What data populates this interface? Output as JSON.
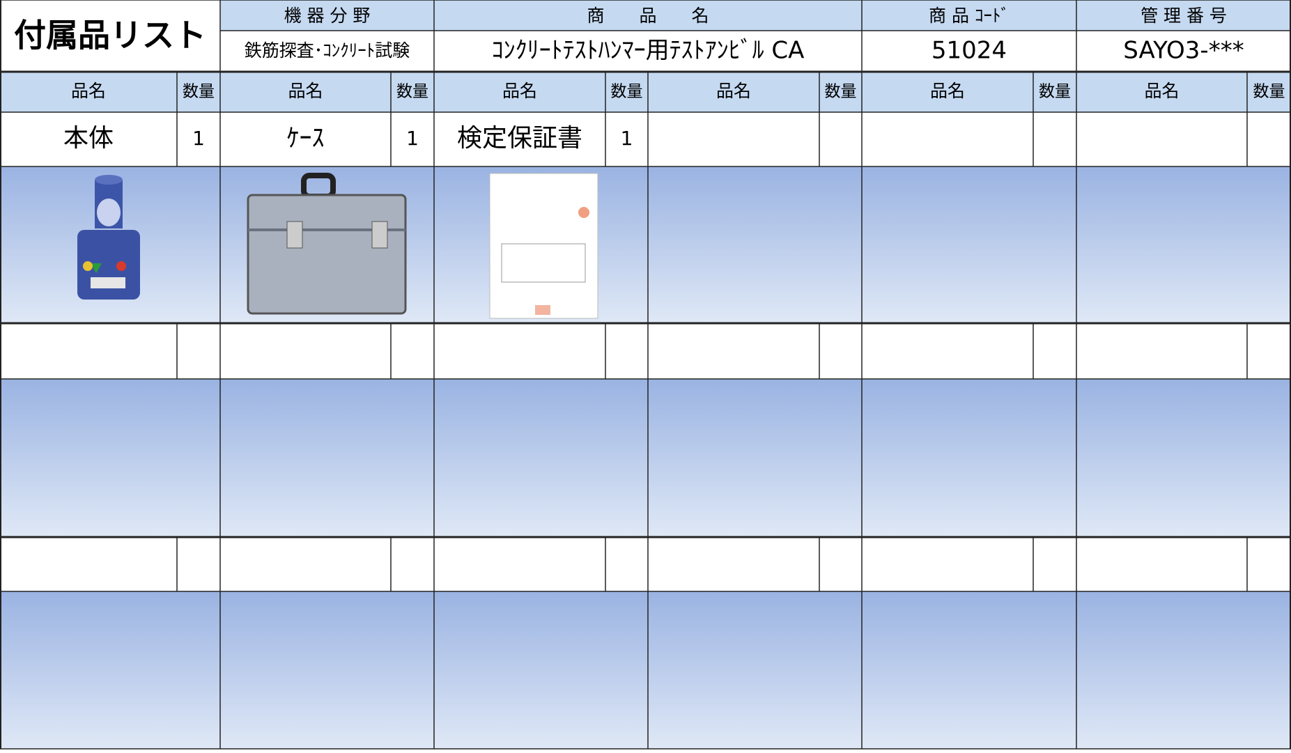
{
  "header": {
    "title": "付属品リスト",
    "fields": [
      {
        "label": "機 器 分 野",
        "value": "鉄筋探査･ｺﾝｸﾘｰﾄ試験"
      },
      {
        "label": "商　　品　　名",
        "value": "ｺﾝｸﾘｰﾄﾃｽﾄﾊﾝﾏｰ用ﾃｽﾄｱﾝﾋﾞﾙ CA"
      },
      {
        "label": "商 品 ｺｰﾄﾞ",
        "value": "51024"
      },
      {
        "label": "管 理 番 号",
        "value": "SAYO3-***"
      }
    ]
  },
  "table": {
    "columns": [
      [
        "品名",
        "数量"
      ],
      [
        "品名",
        "数量"
      ],
      [
        "品名",
        "数量"
      ],
      [
        "品名",
        "数量"
      ],
      [
        "品名",
        "数量"
      ],
      [
        "品名",
        "数量"
      ]
    ],
    "items": [
      {
        "name": "本体",
        "qty": 1
      },
      {
        "name": "ｹｰｽ",
        "qty": 1
      },
      {
        "name": "検定保証書",
        "qty": 1
      }
    ]
  }
}
